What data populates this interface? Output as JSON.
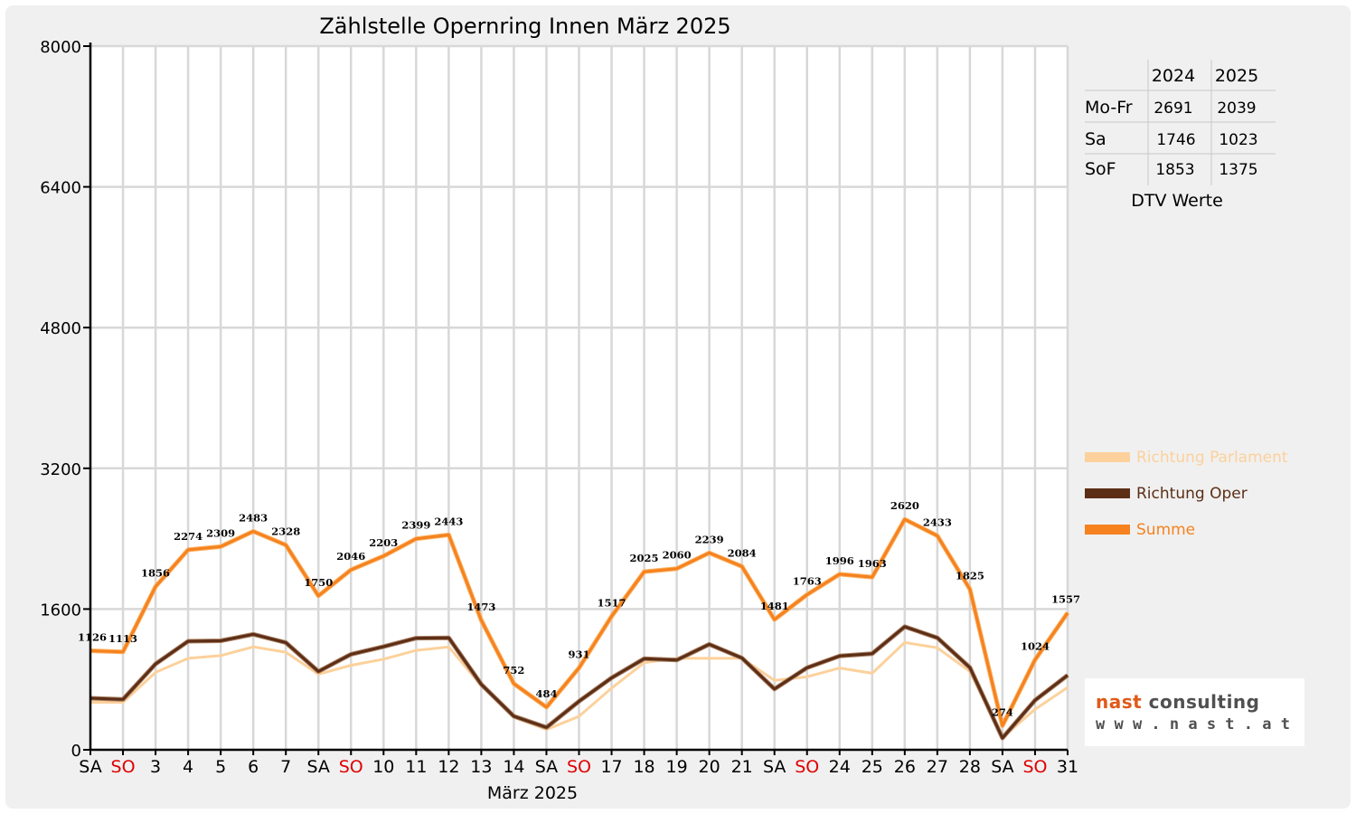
{
  "chart_data": {
    "type": "line",
    "title": "Zählstelle Opernring Innen März 2025",
    "xlabel": "März 2025",
    "ylabel": "",
    "ylim": [
      0,
      8000
    ],
    "yticks": [
      "0",
      "1600",
      "3200",
      "4800",
      "6400",
      "8000"
    ],
    "grid": true,
    "legend_position": "right",
    "categories": [
      "SA",
      "SO",
      "3",
      "4",
      "5",
      "6",
      "7",
      "SA",
      "SO",
      "10",
      "11",
      "12",
      "13",
      "14",
      "SA",
      "SO",
      "17",
      "18",
      "19",
      "20",
      "21",
      "SA",
      "SO",
      "24",
      "25",
      "26",
      "27",
      "28",
      "SA",
      "SO",
      "31"
    ],
    "weekend_days": [
      "SO"
    ],
    "series": [
      {
        "name": "Richtung Parlament",
        "color": "#fcd19c",
        "values": [
          540,
          540,
          880,
          1040,
          1070,
          1170,
          1110,
          860,
          960,
          1030,
          1130,
          1170,
          730,
          370,
          230,
          380,
          700,
          990,
          1040,
          1040,
          1040,
          790,
          830,
          930,
          870,
          1220,
          1160,
          890,
          140,
          460,
          710
        ]
      },
      {
        "name": "Richtung Oper",
        "color": "#5c2e16",
        "values": [
          586,
          573,
          976,
          1234,
          1239,
          1313,
          1218,
          890,
          1086,
          1173,
          1269,
          1273,
          743,
          382,
          254,
          551,
          817,
          1035,
          1020,
          1199,
          1044,
          691,
          933,
          1066,
          1093,
          1400,
          1273,
          935,
          134,
          564,
          847
        ]
      },
      {
        "name": "Summe",
        "color": "#f5821f",
        "values": [
          1126,
          1113,
          1856,
          2274,
          2309,
          2483,
          2328,
          1750,
          2046,
          2203,
          2399,
          2443,
          1473,
          752,
          484,
          931,
          1517,
          2025,
          2060,
          2239,
          2084,
          1481,
          1763,
          1996,
          1963,
          2620,
          2433,
          1825,
          274,
          1024,
          1557
        ]
      }
    ],
    "data_labels": [
      "1126",
      "1113",
      "1856",
      "2274",
      "2309",
      "2483",
      "2328",
      "1750",
      "2046",
      "2203",
      "2399",
      "2443",
      "1473",
      "752",
      "484",
      "931",
      "1517",
      "2025",
      "2060",
      "2239",
      "2084",
      "1481",
      "1763",
      "1996",
      "1963",
      "2620",
      "2433",
      "1825",
      "274",
      "1024",
      "1557"
    ]
  },
  "dtv_table": {
    "headers": [
      "",
      "2024",
      "2025"
    ],
    "rows": [
      {
        "label": "Mo-Fr",
        "v2024": "2691",
        "v2025": "2039"
      },
      {
        "label": "Sa",
        "v2024": "1746",
        "v2025": "1023"
      },
      {
        "label": "SoF",
        "v2024": "1853",
        "v2025": "1375"
      }
    ],
    "caption": "DTV Werte"
  },
  "logo": {
    "brand_word1": "nast",
    "brand_word2": "consulting",
    "url": "w w w . n a s t . a t"
  },
  "colors": {
    "weekend_label": "#e00000",
    "grid": "#d8d8d8",
    "plot_bg": "#ffffff",
    "frame_bg": "#f0f0f0"
  }
}
